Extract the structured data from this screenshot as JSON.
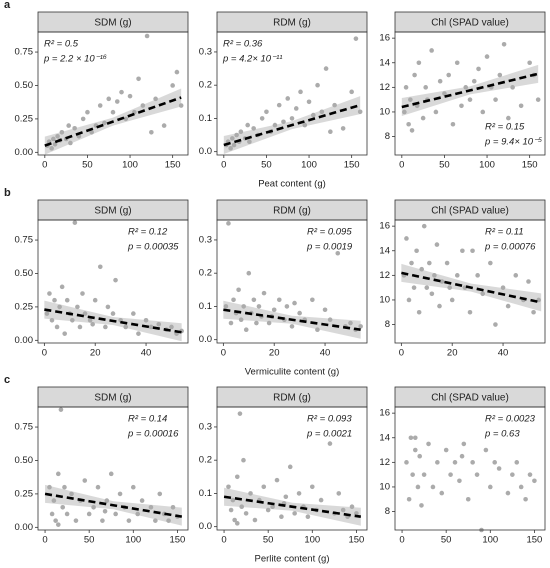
{
  "rows": [
    {
      "label": "a",
      "x_label": "Peat content (g)"
    },
    {
      "label": "b",
      "x_label": "Vermiculite content (g)"
    },
    {
      "label": "c",
      "x_label": "Perlite content (g)"
    }
  ],
  "chart_data": [
    {
      "type": "scatter",
      "title": "SDM (g)",
      "annotations": [
        "R² = 0.5",
        "p = 2.2 × 10⁻¹⁶"
      ],
      "annotation_corner": "top-left",
      "x": [
        3,
        5,
        8,
        10,
        12,
        15,
        18,
        20,
        25,
        28,
        30,
        35,
        40,
        45,
        50,
        55,
        60,
        65,
        70,
        75,
        80,
        90,
        95,
        100,
        105,
        110,
        115,
        120,
        130,
        140,
        150,
        155,
        160,
        125,
        85
      ],
      "values": [
        0.05,
        0.08,
        0.03,
        0.1,
        0.06,
        0.12,
        0.09,
        0.15,
        0.1,
        0.2,
        0.07,
        0.18,
        0.12,
        0.25,
        0.3,
        0.15,
        0.2,
        0.35,
        0.22,
        0.4,
        0.3,
        0.45,
        0.25,
        0.42,
        0.3,
        0.55,
        0.35,
        0.87,
        0.4,
        0.2,
        0.5,
        0.6,
        0.35,
        0.15,
        0.38
      ],
      "trend": {
        "x": [
          0,
          160
        ],
        "y": [
          0.05,
          0.41
        ]
      },
      "color": "#ababab",
      "xlim": [
        -8,
        168
      ],
      "xticks": [
        0,
        50,
        100,
        150
      ],
      "ylim": [
        -0.02,
        0.9
      ],
      "yticks": [
        {
          "value": 0,
          "label": "0.00"
        },
        0.25,
        {
          "value": 0.5,
          "label": "0.50"
        },
        0.75
      ]
    },
    {
      "type": "scatter",
      "title": "RDM (g)",
      "annotations": [
        "R² = 0.36",
        "p = 4.2× 10⁻¹¹"
      ],
      "annotation_corner": "top-left",
      "x": [
        3,
        5,
        8,
        10,
        12,
        15,
        18,
        20,
        25,
        28,
        30,
        35,
        40,
        45,
        50,
        55,
        60,
        65,
        70,
        75,
        80,
        90,
        95,
        100,
        105,
        110,
        115,
        120,
        130,
        140,
        150,
        155,
        160,
        125,
        85
      ],
      "values": [
        0.02,
        0.03,
        0.01,
        0.04,
        0.02,
        0.05,
        0.03,
        0.06,
        0.04,
        0.08,
        0.03,
        0.07,
        0.05,
        0.1,
        0.12,
        0.06,
        0.08,
        0.14,
        0.09,
        0.16,
        0.1,
        0.18,
        0.08,
        0.15,
        0.11,
        0.2,
        0.12,
        0.25,
        0.14,
        0.07,
        0.18,
        0.34,
        0.12,
        0.06,
        0.13
      ],
      "trend": {
        "x": [
          0,
          160
        ],
        "y": [
          0.02,
          0.14
        ]
      },
      "color": "#ababab",
      "xlim": [
        -8,
        168
      ],
      "xticks": [
        0,
        50,
        100,
        150
      ],
      "ylim": [
        -0.01,
        0.36
      ],
      "yticks": [
        {
          "value": 0,
          "label": "0.0"
        },
        0.1,
        0.2,
        0.3
      ]
    },
    {
      "type": "scatter",
      "title": "Chl (SPAD value)",
      "annotations": [
        "R² = 0.15",
        "p = 9.4× 10⁻⁵"
      ],
      "annotation_corner": "bottom-right",
      "x": [
        3,
        5,
        8,
        10,
        12,
        15,
        18,
        20,
        25,
        28,
        30,
        35,
        40,
        45,
        50,
        55,
        60,
        65,
        70,
        75,
        80,
        90,
        95,
        100,
        105,
        110,
        115,
        120,
        130,
        140,
        150,
        155,
        160,
        125,
        85
      ],
      "values": [
        10,
        12,
        9,
        11,
        8.5,
        13,
        10.5,
        14,
        9.5,
        12,
        11,
        15,
        10,
        12.5,
        11.5,
        13,
        9,
        14,
        10.5,
        12,
        11,
        13.5,
        10,
        14.5,
        12,
        11,
        13,
        15.5,
        12,
        10.5,
        14,
        13,
        11,
        9.5,
        12.5
      ],
      "trend": {
        "x": [
          0,
          160
        ],
        "y": [
          10.4,
          13.1
        ]
      },
      "color": "#ababab",
      "xlim": [
        -8,
        168
      ],
      "xticks": [
        0,
        50,
        100,
        150
      ],
      "ylim": [
        6.5,
        16.5
      ],
      "yticks": [
        8,
        10,
        12,
        14,
        16
      ]
    },
    {
      "type": "scatter",
      "title": "SDM (g)",
      "annotations": [
        "R² = 0.12",
        "p = 0.00035"
      ],
      "annotation_corner": "top-right",
      "x": [
        1,
        2,
        3,
        4,
        5,
        6,
        7,
        8,
        9,
        10,
        11,
        12,
        13,
        14,
        15,
        16,
        18,
        20,
        22,
        24,
        25,
        27,
        30,
        32,
        35,
        37,
        40,
        42,
        45,
        48,
        50,
        52,
        54,
        28,
        19
      ],
      "values": [
        0.2,
        0.35,
        0.15,
        0.3,
        0.1,
        0.25,
        0.4,
        0.05,
        0.3,
        0.2,
        0.15,
        0.88,
        0.25,
        0.1,
        0.35,
        0.2,
        0.15,
        0.3,
        0.55,
        0.1,
        0.25,
        0.2,
        0.15,
        0.1,
        0.2,
        0.05,
        0.15,
        0.1,
        0.12,
        0.08,
        0.1,
        0.05,
        0.07,
        0.45,
        0.12
      ],
      "trend": {
        "x": [
          0,
          54
        ],
        "y": [
          0.23,
          0.06
        ]
      },
      "color": "#ababab",
      "xlim": [
        -2.5,
        56.5
      ],
      "xticks": [
        0,
        20,
        40
      ],
      "ylim": [
        -0.02,
        0.9
      ],
      "yticks": [
        {
          "value": 0,
          "label": "0.00"
        },
        0.25,
        {
          "value": 0.5,
          "label": "0.50"
        },
        0.75
      ]
    },
    {
      "type": "scatter",
      "title": "RDM (g)",
      "annotations": [
        "R² = 0.095",
        "p = 0.0019"
      ],
      "annotation_corner": "top-right",
      "x": [
        1,
        2,
        3,
        4,
        5,
        6,
        7,
        8,
        9,
        10,
        11,
        12,
        13,
        14,
        15,
        16,
        18,
        20,
        22,
        24,
        25,
        27,
        30,
        32,
        35,
        37,
        40,
        42,
        45,
        48,
        50,
        52,
        54,
        28,
        19
      ],
      "values": [
        0.1,
        0.35,
        0.05,
        0.12,
        0.08,
        0.15,
        0.06,
        0.1,
        0.03,
        0.2,
        0.08,
        0.12,
        0.05,
        0.1,
        0.07,
        0.14,
        0.05,
        0.09,
        0.12,
        0.06,
        0.1,
        0.04,
        0.08,
        0.06,
        0.12,
        0.03,
        0.09,
        0.06,
        0.26,
        0.04,
        0.05,
        0.03,
        0.04,
        0.11,
        0.07
      ],
      "trend": {
        "x": [
          0,
          54
        ],
        "y": [
          0.09,
          0.03
        ]
      },
      "color": "#ababab",
      "xlim": [
        -2.5,
        56.5
      ],
      "xticks": [
        0,
        20,
        40
      ],
      "ylim": [
        -0.01,
        0.36
      ],
      "yticks": [
        {
          "value": 0,
          "label": "0.0"
        },
        0.1,
        0.2,
        0.3
      ]
    },
    {
      "type": "scatter",
      "title": "Chl (SPAD value)",
      "annotations": [
        "R² = 0.11",
        "p = 0.00076"
      ],
      "annotation_corner": "top-right",
      "x": [
        1,
        2,
        3,
        4,
        5,
        6,
        7,
        8,
        9,
        10,
        11,
        12,
        13,
        14,
        15,
        16,
        18,
        20,
        22,
        24,
        25,
        27,
        30,
        32,
        35,
        37,
        40,
        42,
        45,
        48,
        50,
        52,
        54,
        28,
        19
      ],
      "values": [
        12,
        15,
        10,
        13,
        11,
        14,
        9,
        12.5,
        16,
        11,
        13,
        10.5,
        12,
        14.5,
        9.5,
        11.5,
        13,
        10,
        12,
        14,
        11,
        9,
        12,
        10.5,
        13,
        8,
        11,
        9.5,
        12,
        10,
        11.5,
        9,
        10,
        14,
        11
      ],
      "trend": {
        "x": [
          0,
          55
        ],
        "y": [
          12.2,
          9.8
        ]
      },
      "color": "#ababab",
      "xlim": [
        -2.5,
        56.5
      ],
      "xticks": [
        0,
        20,
        40
      ],
      "ylim": [
        6.5,
        16.5
      ],
      "yticks": [
        8,
        10,
        12,
        14,
        16
      ]
    },
    {
      "type": "scatter",
      "title": "SDM (g)",
      "annotations": [
        "R² = 0.14",
        "p = 0.00016"
      ],
      "annotation_corner": "top-right",
      "x": [
        5,
        8,
        10,
        12,
        15,
        18,
        20,
        22,
        25,
        30,
        35,
        40,
        45,
        50,
        55,
        60,
        65,
        70,
        75,
        80,
        85,
        90,
        95,
        100,
        105,
        110,
        120,
        125,
        130,
        135,
        140,
        145,
        150,
        15,
        68
      ],
      "values": [
        0.3,
        0.1,
        0.2,
        0.05,
        0.4,
        0.88,
        0.15,
        0.3,
        0.1,
        0.25,
        0.05,
        0.2,
        0.35,
        0.1,
        0.15,
        0.3,
        0.05,
        0.2,
        0.4,
        0.1,
        0.25,
        0.15,
        0.05,
        0.3,
        0.1,
        0.2,
        0.15,
        0.05,
        0.25,
        0.1,
        0.05,
        0.15,
        0.08,
        0.02,
        0.12
      ],
      "trend": {
        "x": [
          0,
          155
        ],
        "y": [
          0.25,
          0.08
        ]
      },
      "color": "#ababab",
      "xlim": [
        -8,
        162
      ],
      "xticks": [
        0,
        50,
        100,
        150
      ],
      "ylim": [
        -0.02,
        0.9
      ],
      "yticks": [
        {
          "value": 0,
          "label": "0.00"
        },
        0.25,
        {
          "value": 0.5,
          "label": "0.50"
        },
        0.75
      ]
    },
    {
      "type": "scatter",
      "title": "RDM (g)",
      "annotations": [
        "R² = 0.093",
        "p = 0.0021"
      ],
      "annotation_corner": "top-right",
      "x": [
        5,
        8,
        10,
        12,
        15,
        18,
        20,
        22,
        25,
        30,
        35,
        40,
        45,
        50,
        55,
        60,
        65,
        70,
        75,
        80,
        85,
        90,
        95,
        100,
        105,
        110,
        120,
        125,
        130,
        135,
        140,
        145,
        150,
        15,
        68
      ],
      "values": [
        0.12,
        0.05,
        0.08,
        0.02,
        0.15,
        0.34,
        0.06,
        0.2,
        0.04,
        0.1,
        0.02,
        0.08,
        0.12,
        0.05,
        0.06,
        0.14,
        0.03,
        0.09,
        0.18,
        0.04,
        0.1,
        0.06,
        0.03,
        0.12,
        0.05,
        0.08,
        0.25,
        0.04,
        0.1,
        0.05,
        0.03,
        0.06,
        0.04,
        0.01,
        0.07
      ],
      "trend": {
        "x": [
          0,
          155
        ],
        "y": [
          0.09,
          0.03
        ]
      },
      "color": "#ababab",
      "xlim": [
        -8,
        162
      ],
      "xticks": [
        0,
        50,
        100,
        150
      ],
      "ylim": [
        -0.01,
        0.36
      ],
      "yticks": [
        {
          "value": 0,
          "label": "0.0"
        },
        0.1,
        0.2,
        0.3
      ]
    },
    {
      "type": "scatter",
      "title": "Chl (SPAD value)",
      "annotations": [
        "R² = 0.0023",
        "p = 0.63"
      ],
      "annotation_corner": "top-right",
      "x": [
        5,
        8,
        10,
        12,
        15,
        18,
        20,
        22,
        25,
        30,
        35,
        40,
        45,
        50,
        55,
        60,
        65,
        70,
        75,
        80,
        85,
        90,
        95,
        100,
        105,
        110,
        120,
        125,
        130,
        135,
        140,
        145,
        150,
        15,
        68
      ],
      "values": [
        12,
        9,
        14,
        11,
        13,
        10,
        12.5,
        8.5,
        11,
        13.5,
        10,
        12,
        9.5,
        13,
        11,
        12,
        10.5,
        13.5,
        9,
        12,
        11,
        6.5,
        13,
        10,
        12,
        11.5,
        9.5,
        11,
        12,
        10,
        9,
        11,
        10.5,
        14,
        12.5
      ],
      "color": "#ababab",
      "xlim": [
        -8,
        162
      ],
      "xticks": [
        0,
        50,
        100,
        150
      ],
      "ylim": [
        6.5,
        16.5
      ],
      "yticks": [
        8,
        10,
        12,
        14,
        16
      ]
    }
  ]
}
